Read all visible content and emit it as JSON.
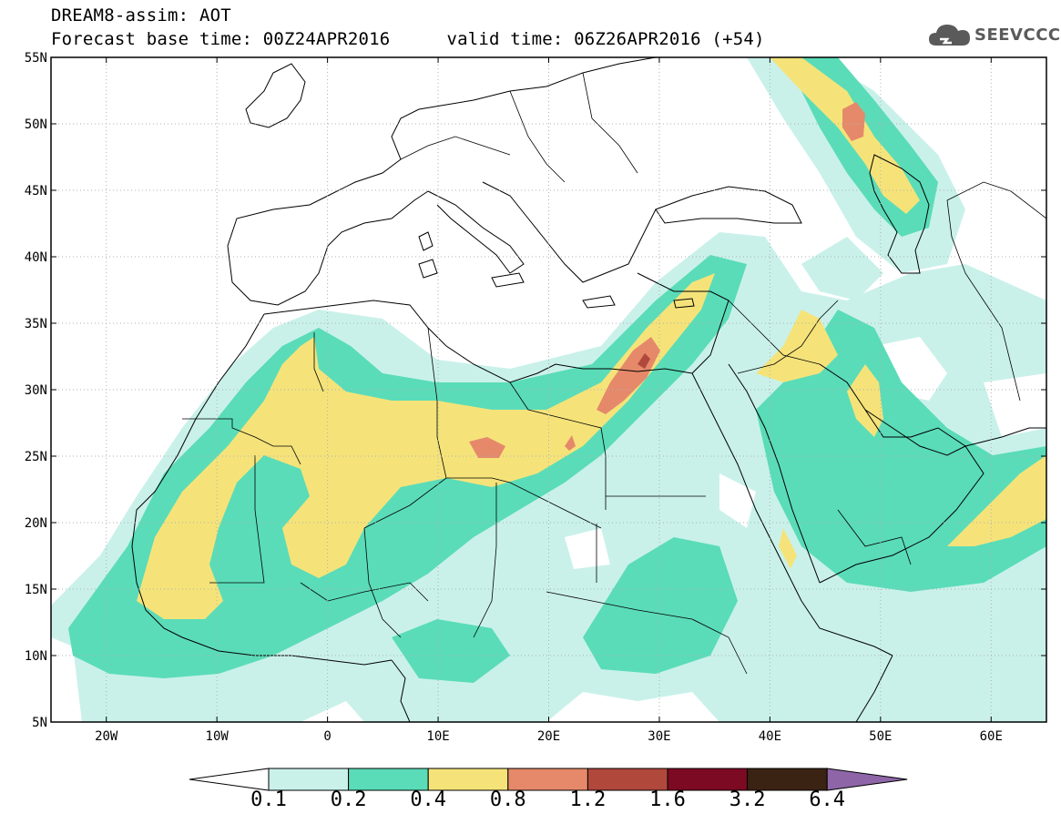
{
  "header": {
    "title": "DREAM8-assim: AOT",
    "base_time": "Forecast base time: 00Z24APR2016",
    "valid_time": "valid time: 06Z26APR2016 (+54)"
  },
  "logo": {
    "text": "SEEVCCC",
    "icon": "cloud-icon"
  },
  "map": {
    "lat_labels": [
      "55N",
      "50N",
      "45N",
      "40N",
      "35N",
      "30N",
      "25N",
      "20N",
      "15N",
      "10N",
      "5N"
    ],
    "lon_labels": [
      "20W",
      "10W",
      "0",
      "10E",
      "20E",
      "30E",
      "40E",
      "50E",
      "60E"
    ],
    "lat_range": [
      5,
      55
    ],
    "lon_range": [
      -25,
      65
    ],
    "grid": "dotted"
  },
  "colorbar": {
    "labels": [
      "0.1",
      "0.2",
      "0.4",
      "0.8",
      "1.2",
      "1.6",
      "3.2",
      "6.4"
    ],
    "colors": [
      "#ffffff",
      "#c9f1ea",
      "#5adcb8",
      "#f5e37a",
      "#e5896a",
      "#b0483c",
      "#7c0a22",
      "#3b2313",
      "#8e66a8"
    ]
  }
}
